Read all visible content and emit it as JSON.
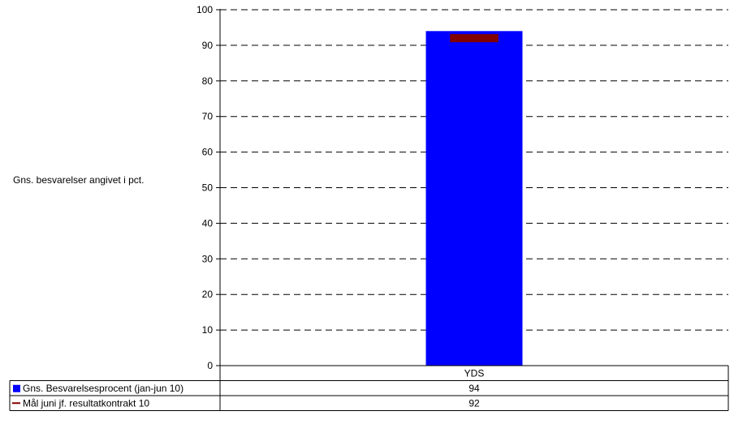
{
  "chart_data": {
    "type": "bar",
    "ylabel": "Gns. besvarelser angivet i pct.",
    "ylim": [
      0,
      100
    ],
    "yticks": [
      0,
      10,
      20,
      30,
      40,
      50,
      60,
      70,
      80,
      90,
      100
    ],
    "grid": true,
    "categories": [
      "YDS"
    ],
    "series": [
      {
        "name": "Gns. Besvarelsesprocent (jan-jun 10)",
        "type": "bar",
        "color": "#0000ff",
        "values": [
          94
        ]
      },
      {
        "name": "Mål juni jf. resultatkontrakt 10",
        "type": "marker",
        "color": "#800000",
        "values": [
          92
        ]
      }
    ],
    "legend_placement": "data-table-left"
  }
}
